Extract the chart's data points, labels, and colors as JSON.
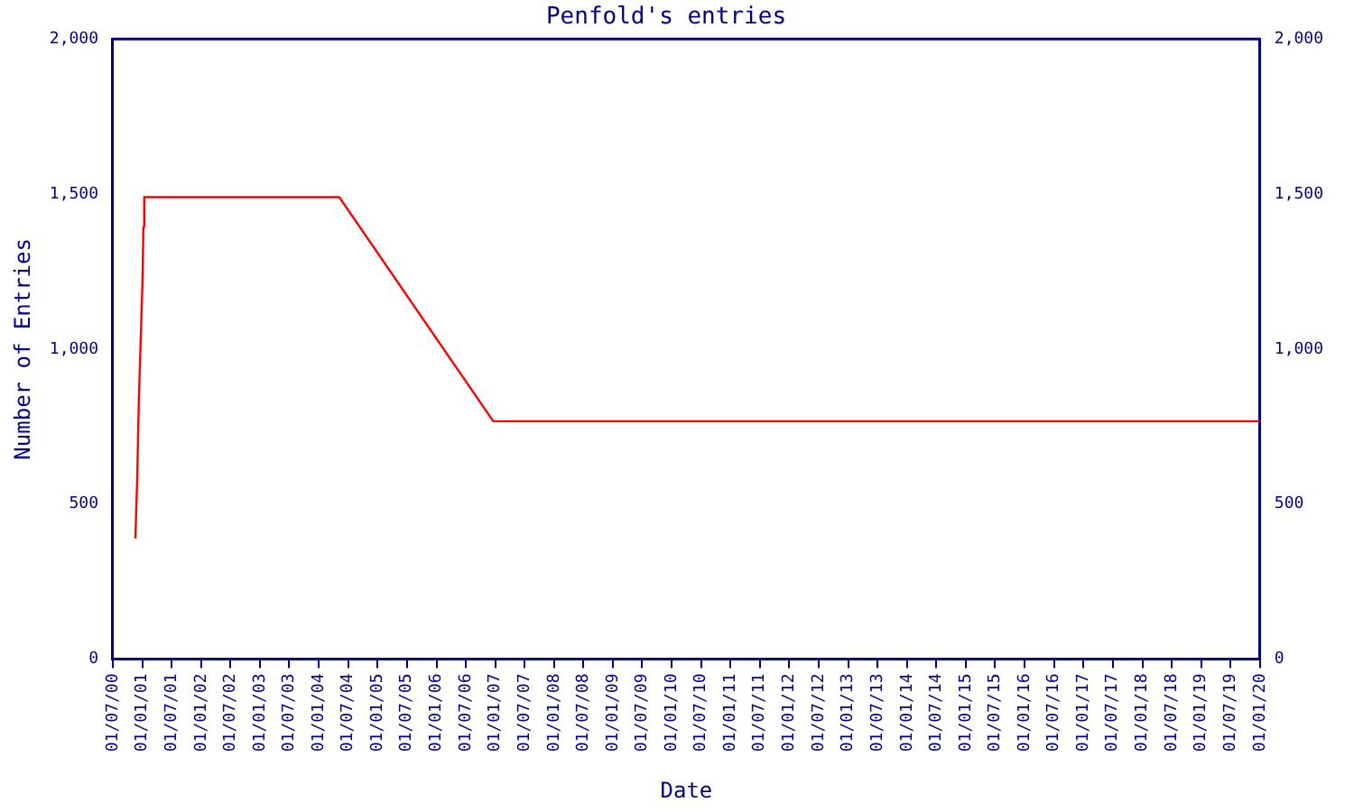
{
  "chart_data": {
    "type": "line",
    "title": "Penfold's entries",
    "xlabel": "Date",
    "ylabel": "Number of Entries",
    "series": [
      {
        "color": "#ff0000",
        "x": [
          "2000-11-18",
          "2000-11-29",
          "2000-12-10",
          "2000-12-21",
          "2001-01-01",
          "2001-01-07",
          "2001-01-12",
          "2004-05-07",
          "2006-12-19",
          "2020-01-01"
        ],
        "values": [
          389,
          574,
          843,
          1028,
          1213,
          1394,
          1490,
          1490,
          767,
          767
        ]
      }
    ],
    "xlim": [
      "2000-07-01",
      "2020-01-01"
    ],
    "xticks": [
      {
        "value": "2000-07-01",
        "label": "01/07/00"
      },
      {
        "value": "2001-01-01",
        "label": "01/01/01"
      },
      {
        "value": "2001-07-01",
        "label": "01/07/01"
      },
      {
        "value": "2002-01-01",
        "label": "01/01/02"
      },
      {
        "value": "2002-07-01",
        "label": "01/07/02"
      },
      {
        "value": "2003-01-01",
        "label": "01/01/03"
      },
      {
        "value": "2003-07-01",
        "label": "01/07/03"
      },
      {
        "value": "2004-01-01",
        "label": "01/01/04"
      },
      {
        "value": "2004-07-01",
        "label": "01/07/04"
      },
      {
        "value": "2005-01-01",
        "label": "01/01/05"
      },
      {
        "value": "2005-07-01",
        "label": "01/07/05"
      },
      {
        "value": "2006-01-01",
        "label": "01/01/06"
      },
      {
        "value": "2006-07-01",
        "label": "01/07/06"
      },
      {
        "value": "2007-01-01",
        "label": "01/01/07"
      },
      {
        "value": "2007-07-01",
        "label": "01/07/07"
      },
      {
        "value": "2008-01-01",
        "label": "01/01/08"
      },
      {
        "value": "2008-07-01",
        "label": "01/07/08"
      },
      {
        "value": "2009-01-01",
        "label": "01/01/09"
      },
      {
        "value": "2009-07-01",
        "label": "01/07/09"
      },
      {
        "value": "2010-01-01",
        "label": "01/01/10"
      },
      {
        "value": "2010-07-01",
        "label": "01/07/10"
      },
      {
        "value": "2011-01-01",
        "label": "01/01/11"
      },
      {
        "value": "2011-07-01",
        "label": "01/07/11"
      },
      {
        "value": "2012-01-01",
        "label": "01/01/12"
      },
      {
        "value": "2012-07-01",
        "label": "01/07/12"
      },
      {
        "value": "2013-01-01",
        "label": "01/01/13"
      },
      {
        "value": "2013-07-01",
        "label": "01/07/13"
      },
      {
        "value": "2014-01-01",
        "label": "01/01/14"
      },
      {
        "value": "2014-07-01",
        "label": "01/07/14"
      },
      {
        "value": "2015-01-01",
        "label": "01/01/15"
      },
      {
        "value": "2015-07-01",
        "label": "01/07/15"
      },
      {
        "value": "2016-01-01",
        "label": "01/01/16"
      },
      {
        "value": "2016-07-01",
        "label": "01/07/16"
      },
      {
        "value": "2017-01-01",
        "label": "01/01/17"
      },
      {
        "value": "2017-07-01",
        "label": "01/07/17"
      },
      {
        "value": "2018-01-01",
        "label": "01/01/18"
      },
      {
        "value": "2018-07-01",
        "label": "01/07/18"
      },
      {
        "value": "2019-01-01",
        "label": "01/01/19"
      },
      {
        "value": "2019-07-01",
        "label": "01/07/19"
      },
      {
        "value": "2020-01-01",
        "label": "01/01/20"
      }
    ],
    "ylim": [
      0,
      2000
    ],
    "yticks": [
      0,
      500,
      {
        "value": 1000,
        "label": "1,000"
      },
      {
        "value": 1500,
        "label": "1,500"
      },
      {
        "value": 2000,
        "label": "2,000"
      }
    ],
    "y2lim": [
      0,
      2000
    ],
    "y2ticks": [
      0,
      500,
      {
        "value": 1000,
        "label": "1,000"
      },
      {
        "value": 1500,
        "label": "1,500"
      },
      {
        "value": 2000,
        "label": "2,000"
      }
    ],
    "grid": false,
    "legend": false,
    "marker": "none",
    "line_style": "solid"
  }
}
